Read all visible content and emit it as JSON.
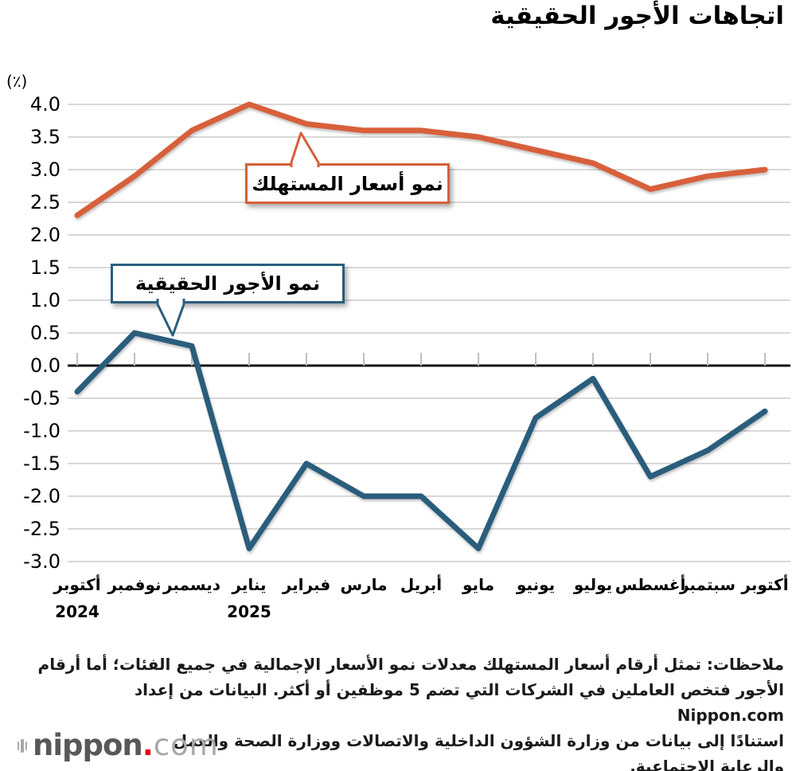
{
  "title": "اتجاهات الأجور الحقيقية",
  "chart_data": {
    "type": "line",
    "title": "اتجاهات الأجور الحقيقية",
    "unit_label": "(٪)",
    "categories": [
      "أكتوبر",
      "نوفمبر",
      "ديسمبر",
      "يناير",
      "فبراير",
      "مارس",
      "أبريل",
      "مايو",
      "يونيو",
      "يوليو",
      "أغسطس",
      "سبتمبر",
      "أكتوبر"
    ],
    "year_markers": [
      {
        "index": 0,
        "label": "2024"
      },
      {
        "index": 3,
        "label": "2025"
      }
    ],
    "series": [
      {
        "name": "نمو أسعار المستهلك",
        "color": "#d7603a",
        "values": [
          2.3,
          2.9,
          3.6,
          4.0,
          3.7,
          3.6,
          3.6,
          3.5,
          3.3,
          3.1,
          2.7,
          2.9,
          3.0
        ]
      },
      {
        "name": "نمو الأجور الحقيقية",
        "color": "#2a5d7c",
        "values": [
          -0.4,
          0.5,
          0.3,
          -2.8,
          -1.5,
          -2.0,
          -2.0,
          -2.8,
          -0.8,
          -0.2,
          -1.7,
          -1.3,
          -0.7
        ]
      }
    ],
    "ylim": [
      -3.0,
      4.0
    ],
    "ytick_step": 0.5,
    "grid": true,
    "legend_position": "callouts-on-plot"
  },
  "callouts": {
    "cpi": "نمو أسعار المستهلك",
    "wages": "نمو الأجور الحقيقية"
  },
  "notes": {
    "lines": [
      "ملاحظات: تمثل أرقام أسعار المستهلك معدلات نمو الأسعار الإجمالية في جميع الفئات؛ أما أرقام",
      "الأجور فتخص العاملين في الشركات التي تضم 5 موظفين أو أكثر. البيانات من إعداد Nippon.com",
      "استنادًا إلى بيانات من وزارة الشؤون الداخلية والاتصالات ووزارة الصحة والعمل",
      "والرعاية الاجتماعية."
    ]
  },
  "logo": {
    "name": "nippon",
    "dot": ".",
    "tld": "com"
  }
}
